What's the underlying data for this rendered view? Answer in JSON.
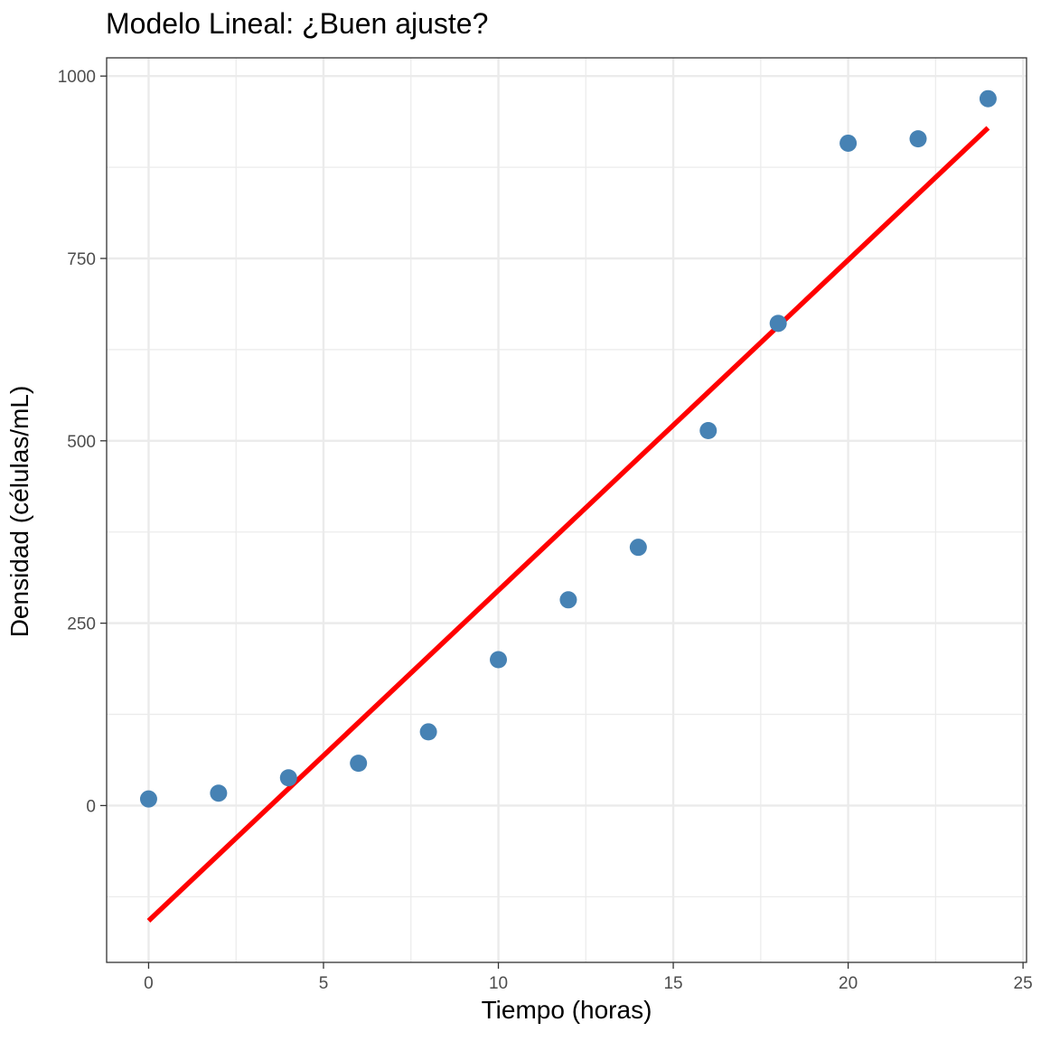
{
  "chart_data": {
    "type": "scatter",
    "title": "Modelo Lineal: ¿Buen ajuste?",
    "xlabel": "Tiempo (horas)",
    "ylabel": "Densidad (células/mL)",
    "xlim": [
      -1.2,
      25.1
    ],
    "ylim": [
      -215,
      1025
    ],
    "x_ticks": [
      0,
      5,
      10,
      15,
      20,
      25
    ],
    "y_ticks": [
      0,
      250,
      500,
      750,
      1000
    ],
    "grid": true,
    "legend": "none",
    "series": [
      {
        "type": "scatter",
        "color": "#4682B4",
        "x": [
          0,
          2,
          4,
          6,
          8,
          10,
          12,
          14,
          16,
          18,
          20,
          22,
          24
        ],
        "y": [
          9,
          17,
          38,
          58,
          101,
          200,
          282,
          354,
          514,
          661,
          908,
          914,
          969
        ]
      },
      {
        "type": "line",
        "color": "#FF0000",
        "x": [
          0,
          24
        ],
        "y": [
          -158,
          929
        ]
      }
    ]
  }
}
